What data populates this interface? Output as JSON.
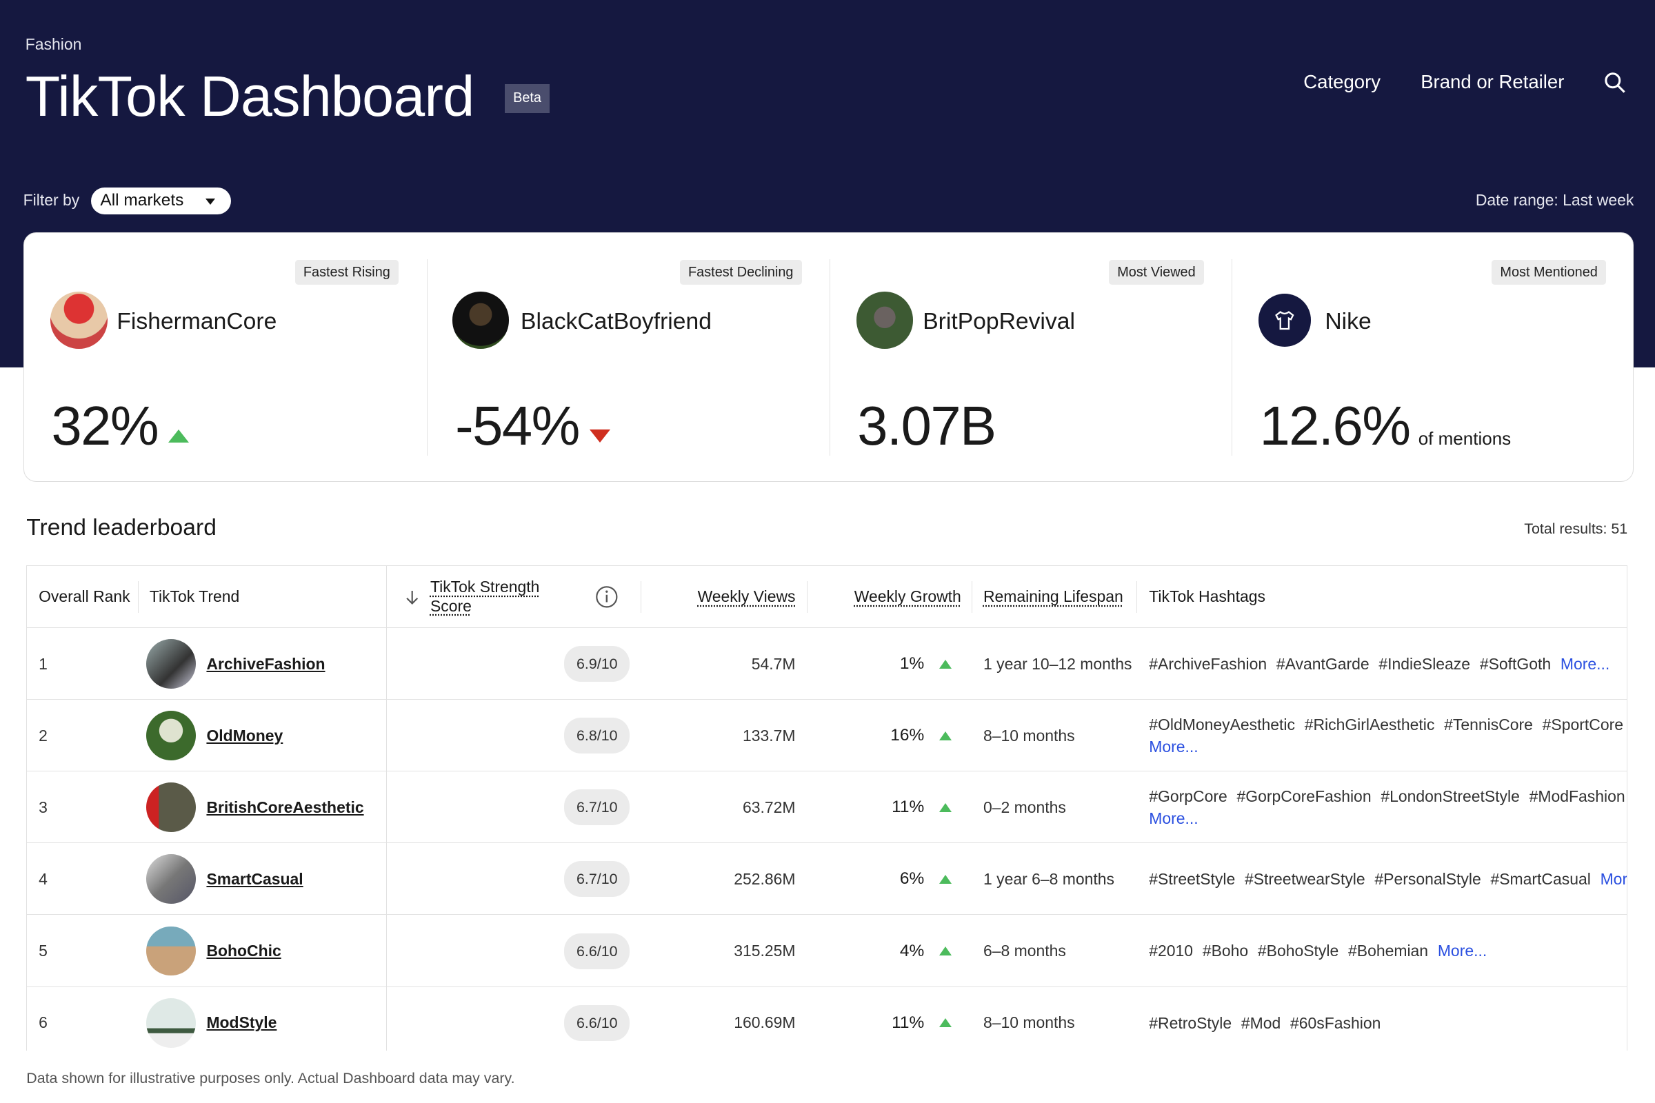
{
  "header": {
    "section": "Fashion",
    "title": "TikTok Dashboard",
    "badge": "Beta",
    "nav": [
      "Category",
      "Brand or Retailer"
    ]
  },
  "filter": {
    "label": "Filter by",
    "selected": "All markets",
    "date_range": "Date range: Last week"
  },
  "highlights": [
    {
      "badge": "Fastest Rising",
      "name": "FishermanCore",
      "value": "32%",
      "direction": "up"
    },
    {
      "badge": "Fastest Declining",
      "name": "BlackCatBoyfriend",
      "value": "-54%",
      "direction": "down"
    },
    {
      "badge": "Most Viewed",
      "name": "BritPopRevival",
      "value": "3.07B"
    },
    {
      "badge": "Most Mentioned",
      "name": "Nike",
      "value": "12.6%",
      "suffix": "of mentions"
    }
  ],
  "leaderboard": {
    "title": "Trend leaderboard",
    "total": "Total results: 51",
    "columns": {
      "rank": "Overall Rank",
      "trend": "TikTok Trend",
      "score": "TikTok Strength Score",
      "views": "Weekly Views",
      "growth": "Weekly Growth",
      "lifespan": "Remaining Lifespan",
      "hashtags": "TikTok Hashtags"
    },
    "more_label": "More...",
    "rows": [
      {
        "rank": "1",
        "trend": "ArchiveFashion",
        "score": "6.9/10",
        "views": "54.7M",
        "growth": "1%",
        "lifespan": "1 year 10–12 months",
        "hashtags": [
          "#ArchiveFashion",
          "#AvantGarde",
          "#IndieSleaze",
          "#SoftGoth"
        ]
      },
      {
        "rank": "2",
        "trend": "OldMoney",
        "score": "6.8/10",
        "views": "133.7M",
        "growth": "16%",
        "lifespan": "8–10 months",
        "hashtags": [
          "#OldMoneyAesthetic",
          "#RichGirlAesthetic",
          "#TennisCore",
          "#SportCore"
        ]
      },
      {
        "rank": "3",
        "trend": "BritishCoreAesthetic",
        "score": "6.7/10",
        "views": "63.72M",
        "growth": "11%",
        "lifespan": "0–2 months",
        "hashtags": [
          "#GorpCore",
          "#GorpCoreFashion",
          "#LondonStreetStyle",
          "#ModFashion"
        ]
      },
      {
        "rank": "4",
        "trend": "SmartCasual",
        "score": "6.7/10",
        "views": "252.86M",
        "growth": "6%",
        "lifespan": "1 year 6–8 months",
        "hashtags": [
          "#StreetStyle",
          "#StreetwearStyle",
          "#PersonalStyle",
          "#SmartCasual"
        ]
      },
      {
        "rank": "5",
        "trend": "BohoChic",
        "score": "6.6/10",
        "views": "315.25M",
        "growth": "4%",
        "lifespan": "6–8 months",
        "hashtags": [
          "#2010",
          "#Boho",
          "#BohoStyle",
          "#Bohemian"
        ]
      },
      {
        "rank": "6",
        "trend": "ModStyle",
        "score": "6.6/10",
        "views": "160.69M",
        "growth": "11%",
        "lifespan": "8–10 months",
        "hashtags": [
          "#RetroStyle",
          "#Mod",
          "#60sFashion"
        ]
      }
    ]
  },
  "footer": "Data shown for illustrative purposes only. Actual Dashboard data may vary.",
  "colors": {
    "header_bg": "#151840",
    "up": "#4cbb5c",
    "down": "#cf2e1f",
    "link": "#2a4fe0"
  }
}
